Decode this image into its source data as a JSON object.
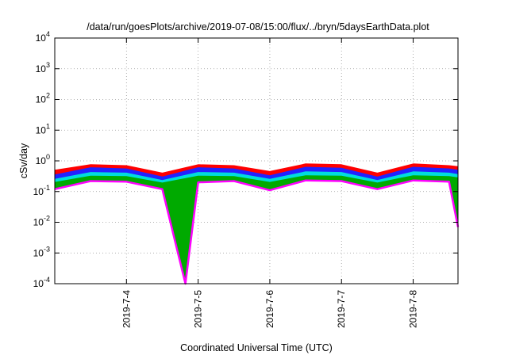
{
  "chart_data": {
    "type": "area",
    "title": "/data/run/goesPlots/archive/2019-07-08/15:00/flux/../bryn/5daysEarthData.plot",
    "xlabel": "Coordinated Universal Time (UTC)",
    "ylabel": "cSv/day",
    "yscale": "log",
    "ylim": [
      0.0001,
      10000
    ],
    "xlim": [
      "2019-07-03T00:00",
      "2019-07-08T15:00"
    ],
    "x_ticks": [
      "2019-7-4",
      "2019-7-5",
      "2019-7-6",
      "2019-7-7",
      "2019-7-8"
    ],
    "y_ticks": [
      {
        "base": "10",
        "exp": "-4",
        "value": 0.0001
      },
      {
        "base": "10",
        "exp": "-3",
        "value": 0.001
      },
      {
        "base": "10",
        "exp": "-2",
        "value": 0.01
      },
      {
        "base": "10",
        "exp": "-1",
        "value": 0.1
      },
      {
        "base": "10",
        "exp": "0",
        "value": 1
      },
      {
        "base": "10",
        "exp": "1",
        "value": 10
      },
      {
        "base": "10",
        "exp": "2",
        "value": 100
      },
      {
        "base": "10",
        "exp": "3",
        "value": 1000
      },
      {
        "base": "10",
        "exp": "4",
        "value": 10000
      }
    ],
    "grid": true,
    "legend": "none",
    "series": [
      {
        "color": "#ff0000",
        "x": [
          "2019-07-03T00:00",
          "2019-07-03T12:00",
          "2019-07-04T00:00",
          "2019-07-04T12:00",
          "2019-07-05T00:00",
          "2019-07-05T12:00",
          "2019-07-06T00:00",
          "2019-07-06T12:00",
          "2019-07-07T00:00",
          "2019-07-07T12:00",
          "2019-07-08T00:00",
          "2019-07-08T12:00",
          "2019-07-08T15:00"
        ],
        "values": [
          0.5,
          0.75,
          0.7,
          0.4,
          0.75,
          0.7,
          0.45,
          0.8,
          0.75,
          0.4,
          0.8,
          0.7,
          0.65
        ]
      },
      {
        "color": "#2222ff",
        "x": [
          "2019-07-03T00:00",
          "2019-07-03T12:00",
          "2019-07-04T00:00",
          "2019-07-04T12:00",
          "2019-07-05T00:00",
          "2019-07-05T12:00",
          "2019-07-06T00:00",
          "2019-07-06T12:00",
          "2019-07-07T00:00",
          "2019-07-07T12:00",
          "2019-07-08T00:00",
          "2019-07-08T12:00",
          "2019-07-08T15:00"
        ],
        "values": [
          0.35,
          0.6,
          0.55,
          0.3,
          0.6,
          0.55,
          0.33,
          0.62,
          0.58,
          0.3,
          0.62,
          0.55,
          0.5
        ]
      },
      {
        "color": "#00dddd",
        "x": [
          "2019-07-03T00:00",
          "2019-07-03T12:00",
          "2019-07-04T00:00",
          "2019-07-04T12:00",
          "2019-07-05T00:00",
          "2019-07-05T12:00",
          "2019-07-06T00:00",
          "2019-07-06T12:00",
          "2019-07-07T00:00",
          "2019-07-07T12:00",
          "2019-07-08T00:00",
          "2019-07-08T12:00",
          "2019-07-08T15:00"
        ],
        "values": [
          0.25,
          0.42,
          0.4,
          0.23,
          0.42,
          0.4,
          0.25,
          0.44,
          0.42,
          0.23,
          0.44,
          0.4,
          0.36
        ]
      },
      {
        "color": "#00aa00",
        "x": [
          "2019-07-03T00:00",
          "2019-07-03T12:00",
          "2019-07-04T00:00",
          "2019-07-04T12:00",
          "2019-07-05T00:00",
          "2019-07-05T12:00",
          "2019-07-06T00:00",
          "2019-07-06T12:00",
          "2019-07-07T00:00",
          "2019-07-07T12:00",
          "2019-07-08T00:00",
          "2019-07-08T12:00",
          "2019-07-08T15:00"
        ],
        "values": [
          0.2,
          0.32,
          0.31,
          0.19,
          0.32,
          0.31,
          0.2,
          0.33,
          0.32,
          0.19,
          0.33,
          0.31,
          0.28
        ]
      },
      {
        "color": "#ff00ff",
        "x": [
          "2019-07-03T00:00",
          "2019-07-03T12:00",
          "2019-07-04T00:00",
          "2019-07-04T12:00",
          "2019-07-04T19:45",
          "2019-07-05T00:00",
          "2019-07-05T12:00",
          "2019-07-06T00:00",
          "2019-07-06T12:00",
          "2019-07-07T00:00",
          "2019-07-07T12:00",
          "2019-07-08T00:00",
          "2019-07-08T12:00",
          "2019-07-08T15:00"
        ],
        "values": [
          0.12,
          0.22,
          0.21,
          0.12,
          0.0001,
          0.2,
          0.22,
          0.11,
          0.23,
          0.22,
          0.12,
          0.23,
          0.21,
          0.007
        ]
      }
    ]
  }
}
